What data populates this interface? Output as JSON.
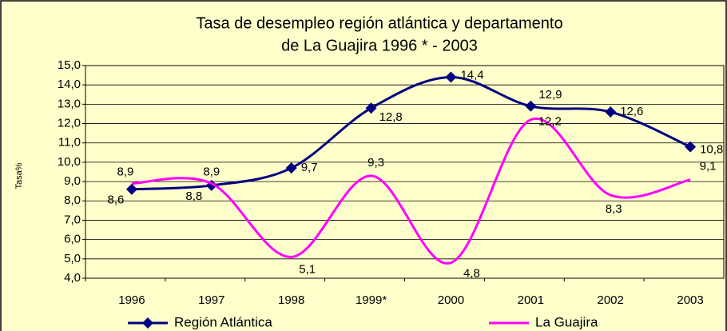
{
  "chart_data": {
    "type": "line",
    "title": [
      "Tasa de desempleo región atlántica y  departamento",
      "de La Guajira 1996 * - 2003"
    ],
    "y_label": "Tasa%",
    "categories": [
      "1996",
      "1997",
      "1998",
      "1999*",
      "2000",
      "2001",
      "2002",
      "2003"
    ],
    "series": [
      {
        "name": "Región Atlántica",
        "color": "#000080",
        "marker": "diamond",
        "values": [
          8.6,
          8.8,
          9.7,
          12.8,
          14.4,
          12.9,
          12.6,
          10.8
        ],
        "value_labels": [
          "8,6",
          "8,8",
          "9,7",
          "12,8",
          "14,4",
          "12,9",
          "12,6",
          "10,8"
        ]
      },
      {
        "name": "La Guajira",
        "color": "#ff00ff",
        "values": [
          8.9,
          8.9,
          5.1,
          9.3,
          4.8,
          12.2,
          8.3,
          9.1
        ],
        "value_labels": [
          "8,9",
          "8,9",
          "5,1",
          "9,3",
          "4,8",
          "12,2",
          "8,3",
          "9,1"
        ]
      }
    ],
    "ylim": [
      4,
      15
    ],
    "yticks": [
      {
        "value": 4,
        "label": "4,0"
      },
      {
        "value": 5,
        "label": "5,0"
      },
      {
        "value": 6,
        "label": "6,0"
      },
      {
        "value": 7,
        "label": "7,0"
      },
      {
        "value": 8,
        "label": "8,0"
      },
      {
        "value": 9,
        "label": "9,0"
      },
      {
        "value": 10,
        "label": "10,0"
      },
      {
        "value": 11,
        "label": "11,0"
      },
      {
        "value": 12,
        "label": "12,0"
      },
      {
        "value": 13,
        "label": "13,0"
      },
      {
        "value": 14,
        "label": "14,0"
      },
      {
        "value": 15,
        "label": "15,0"
      }
    ],
    "grid": true,
    "smooth": true,
    "legend": "bottom"
  }
}
